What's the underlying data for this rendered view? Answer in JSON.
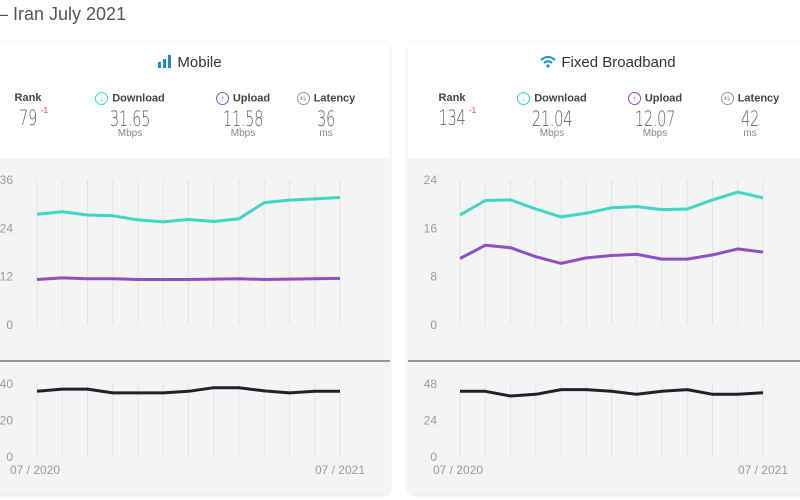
{
  "header": {
    "title": "– Iran July 2021"
  },
  "colors": {
    "download": "#3ed6c4",
    "upload": "#8e4fc4",
    "latency": "#1f2329",
    "accent": "#1e88c8",
    "rank_change": "#d33333"
  },
  "cards": [
    {
      "title": "Mobile",
      "icon": "signal-bars-icon",
      "rank": {
        "label": "Rank",
        "value": "79",
        "change": "-1"
      },
      "download": {
        "label": "Download",
        "value": "31.65",
        "unit": "Mbps",
        "icon": "arrow-down-circle-icon"
      },
      "upload": {
        "label": "Upload",
        "value": "11.58",
        "unit": "Mbps",
        "icon": "arrow-up-circle-icon"
      },
      "latency": {
        "label": "Latency",
        "value": "36",
        "unit": "ms",
        "icon": "exchange-circle-icon"
      }
    },
    {
      "title": "Fixed Broadband",
      "icon": "wifi-icon",
      "rank": {
        "label": "Rank",
        "value": "134",
        "change": "-1"
      },
      "download": {
        "label": "Download",
        "value": "21.04",
        "unit": "Mbps",
        "icon": "arrow-down-circle-icon"
      },
      "upload": {
        "label": "Upload",
        "value": "12.07",
        "unit": "Mbps",
        "icon": "arrow-up-circle-icon"
      },
      "latency": {
        "label": "Latency",
        "value": "42",
        "unit": "ms",
        "icon": "exchange-circle-icon"
      }
    }
  ],
  "chart_data": [
    {
      "type": "line",
      "panel": "Mobile speed",
      "x": [
        "07/2020",
        "08/2020",
        "09/2020",
        "10/2020",
        "11/2020",
        "12/2020",
        "01/2021",
        "02/2021",
        "03/2021",
        "04/2021",
        "05/2021",
        "06/2021",
        "07/2021"
      ],
      "x_tick_labels": [
        "07 / 2020",
        "07 / 2021"
      ],
      "yticks": [
        0,
        12,
        24,
        36
      ],
      "ylim": [
        0,
        36
      ],
      "series": [
        {
          "key": "download",
          "values": [
            27.5,
            28.1,
            27.3,
            27.1,
            26.1,
            25.6,
            26.2,
            25.7,
            26.4,
            30.4,
            31.0,
            31.3,
            31.65
          ]
        },
        {
          "key": "upload",
          "values": [
            11.3,
            11.7,
            11.5,
            11.5,
            11.3,
            11.3,
            11.3,
            11.4,
            11.5,
            11.3,
            11.4,
            11.5,
            11.58
          ]
        }
      ],
      "grid": "vertical"
    },
    {
      "type": "line",
      "panel": "Mobile latency",
      "x": [
        "07/2020",
        "08/2020",
        "09/2020",
        "10/2020",
        "11/2020",
        "12/2020",
        "01/2021",
        "02/2021",
        "03/2021",
        "04/2021",
        "05/2021",
        "06/2021",
        "07/2021"
      ],
      "yticks": [
        0,
        20,
        40
      ],
      "ylim": [
        0,
        40
      ],
      "series": [
        {
          "key": "latency",
          "values": [
            36,
            37.2,
            37.2,
            35.1,
            35.1,
            35.1,
            36,
            38,
            38,
            36.2,
            35.1,
            36,
            36
          ]
        }
      ],
      "grid": "vertical"
    },
    {
      "type": "line",
      "panel": "Fixed Broadband speed",
      "x": [
        "07/2020",
        "08/2020",
        "09/2020",
        "10/2020",
        "11/2020",
        "12/2020",
        "01/2021",
        "02/2021",
        "03/2021",
        "04/2021",
        "05/2021",
        "06/2021",
        "07/2021"
      ],
      "x_tick_labels": [
        "07 / 2020",
        "07 / 2021"
      ],
      "yticks": [
        0,
        8,
        16,
        24
      ],
      "ylim": [
        0,
        24
      ],
      "series": [
        {
          "key": "download",
          "values": [
            18.2,
            20.6,
            20.7,
            19.2,
            17.9,
            18.5,
            19.4,
            19.6,
            19.1,
            19.2,
            20.7,
            22.0,
            21.04
          ]
        },
        {
          "key": "upload",
          "values": [
            11.0,
            13.2,
            12.8,
            11.3,
            10.2,
            11.1,
            11.5,
            11.7,
            10.9,
            10.9,
            11.6,
            12.6,
            12.07
          ]
        }
      ],
      "grid": "vertical"
    },
    {
      "type": "line",
      "panel": "Fixed Broadband latency",
      "x": [
        "07/2020",
        "08/2020",
        "09/2020",
        "10/2020",
        "11/2020",
        "12/2020",
        "01/2021",
        "02/2021",
        "03/2021",
        "04/2021",
        "05/2021",
        "06/2021",
        "07/2021"
      ],
      "yticks": [
        0,
        24,
        48
      ],
      "ylim": [
        0,
        48
      ],
      "series": [
        {
          "key": "latency",
          "values": [
            43.2,
            43.2,
            40.1,
            41.2,
            44.3,
            44.3,
            43.2,
            41.2,
            43.2,
            44.3,
            41.2,
            41.2,
            42.3
          ]
        }
      ],
      "grid": "vertical"
    }
  ]
}
